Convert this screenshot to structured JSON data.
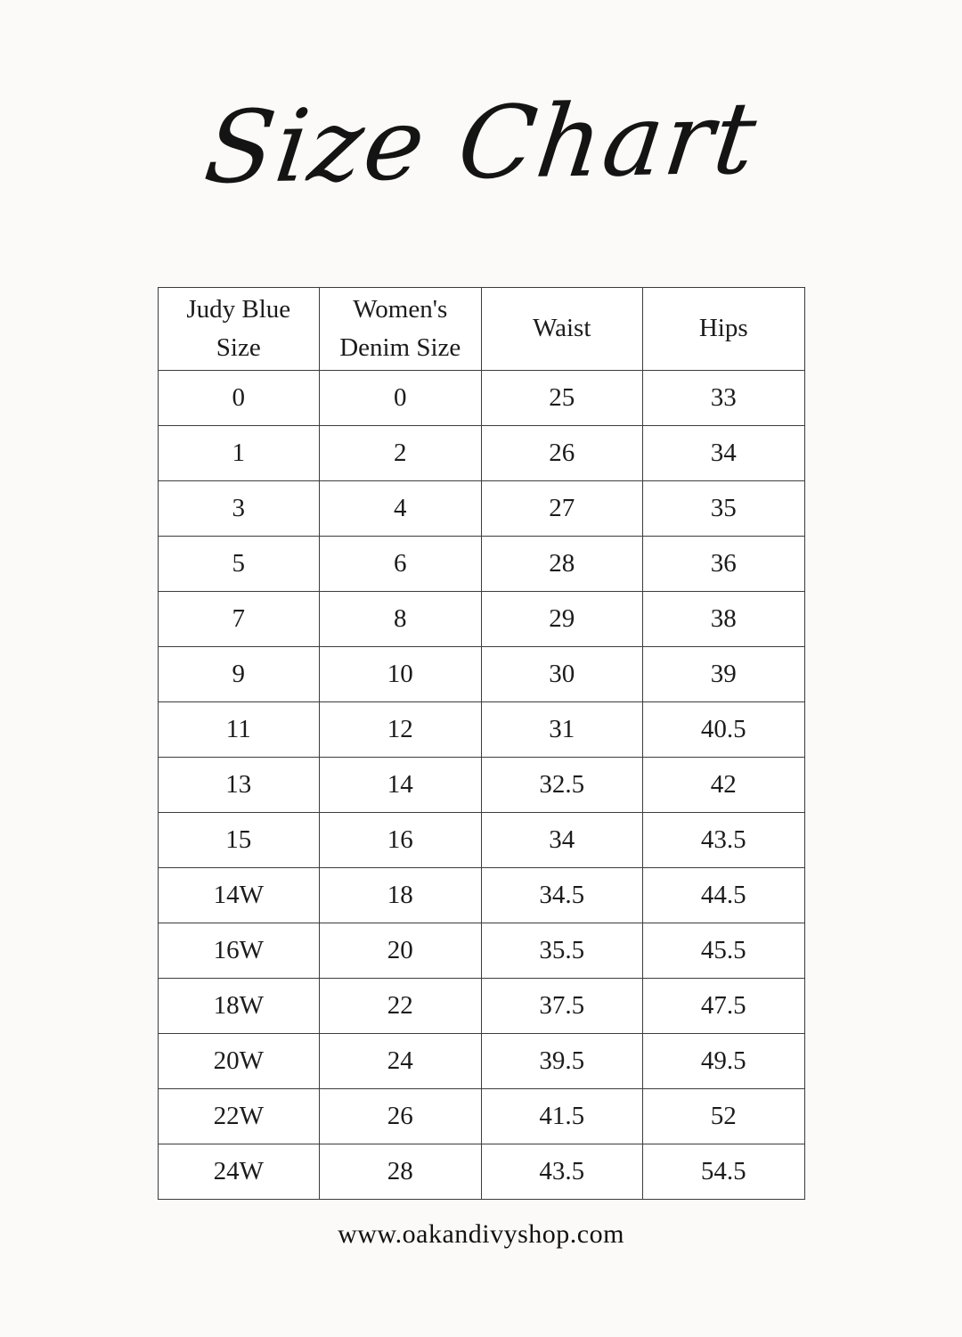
{
  "page": {
    "title_text": "Size Chart",
    "footer_url": "www.oakandivyshop.com",
    "colors": {
      "background": "#fbfaf8",
      "table_background": "#ffffff",
      "border": "#3c3c3c",
      "text": "#1b1b1b"
    }
  },
  "chart_data": {
    "type": "table",
    "title": "Size Chart",
    "columns": [
      "Judy Blue Size",
      "Women's Denim Size",
      "Waist",
      "Hips"
    ],
    "rows": [
      [
        "0",
        "0",
        "25",
        "33"
      ],
      [
        "1",
        "2",
        "26",
        "34"
      ],
      [
        "3",
        "4",
        "27",
        "35"
      ],
      [
        "5",
        "6",
        "28",
        "36"
      ],
      [
        "7",
        "8",
        "29",
        "38"
      ],
      [
        "9",
        "10",
        "30",
        "39"
      ],
      [
        "11",
        "12",
        "31",
        "40.5"
      ],
      [
        "13",
        "14",
        "32.5",
        "42"
      ],
      [
        "15",
        "16",
        "34",
        "43.5"
      ],
      [
        "14W",
        "18",
        "34.5",
        "44.5"
      ],
      [
        "16W",
        "20",
        "35.5",
        "45.5"
      ],
      [
        "18W",
        "22",
        "37.5",
        "47.5"
      ],
      [
        "20W",
        "24",
        "39.5",
        "49.5"
      ],
      [
        "22W",
        "26",
        "41.5",
        "52"
      ],
      [
        "24W",
        "28",
        "43.5",
        "54.5"
      ]
    ]
  }
}
